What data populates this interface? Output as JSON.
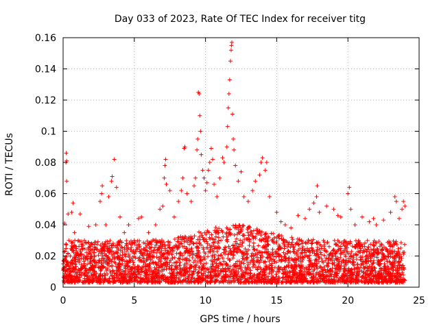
{
  "chart_data": {
    "type": "scatter",
    "title": "Day 033 of 2023, Rate Of TEC Index for receiver titg",
    "xlabel": "GPS time / hours",
    "ylabel": "ROTI / TECUs",
    "xlim": [
      0,
      25
    ],
    "ylim": [
      0,
      0.16
    ],
    "xticks": [
      0,
      5,
      10,
      15,
      20,
      25
    ],
    "xtick_labels": [
      "0",
      "5",
      "10",
      "15",
      "20",
      "25"
    ],
    "yticks": [
      0,
      0.02,
      0.04,
      0.06,
      0.08,
      0.1,
      0.12,
      0.14,
      0.16
    ],
    "ytick_labels": [
      "0",
      "0.02",
      "0.04",
      "0.06",
      "0.08",
      "0.1",
      "0.12",
      "0.14",
      "0.16"
    ],
    "grid": true,
    "marker": "+",
    "color": "#ff0000",
    "series": [
      {
        "name": "ROTI",
        "points": [
          [
            0.05,
            0.012
          ],
          [
            0.1,
            0.041
          ],
          [
            0.15,
            0.018
          ],
          [
            0.2,
            0.08
          ],
          [
            0.22,
            0.086
          ],
          [
            0.25,
            0.081
          ],
          [
            0.25,
            0.068
          ],
          [
            0.35,
            0.047
          ],
          [
            0.4,
            0.03
          ],
          [
            0.5,
            0.02
          ],
          [
            0.6,
            0.048
          ],
          [
            0.7,
            0.054
          ],
          [
            0.8,
            0.035
          ],
          [
            0.9,
            0.025
          ],
          [
            1.2,
            0.047
          ],
          [
            1.5,
            0.03
          ],
          [
            1.8,
            0.039
          ],
          [
            2.0,
            0.028
          ],
          [
            2.3,
            0.04
          ],
          [
            2.6,
            0.055
          ],
          [
            2.7,
            0.06
          ],
          [
            2.75,
            0.065
          ],
          [
            3.0,
            0.04
          ],
          [
            3.2,
            0.058
          ],
          [
            3.4,
            0.068
          ],
          [
            3.45,
            0.071
          ],
          [
            3.6,
            0.082
          ],
          [
            3.75,
            0.064
          ],
          [
            4.0,
            0.045
          ],
          [
            4.3,
            0.035
          ],
          [
            4.6,
            0.04
          ],
          [
            5.0,
            0.03
          ],
          [
            5.3,
            0.044
          ],
          [
            5.5,
            0.045
          ],
          [
            6.0,
            0.035
          ],
          [
            6.5,
            0.04
          ],
          [
            6.8,
            0.05
          ],
          [
            7.0,
            0.052
          ],
          [
            7.1,
            0.07
          ],
          [
            7.15,
            0.078
          ],
          [
            7.2,
            0.082
          ],
          [
            7.25,
            0.066
          ],
          [
            7.5,
            0.062
          ],
          [
            7.8,
            0.045
          ],
          [
            8.1,
            0.055
          ],
          [
            8.3,
            0.062
          ],
          [
            8.4,
            0.07
          ],
          [
            8.5,
            0.089
          ],
          [
            8.55,
            0.09
          ],
          [
            8.7,
            0.06
          ],
          [
            9.0,
            0.055
          ],
          [
            9.2,
            0.065
          ],
          [
            9.3,
            0.07
          ],
          [
            9.4,
            0.088
          ],
          [
            9.45,
            0.095
          ],
          [
            9.5,
            0.125
          ],
          [
            9.55,
            0.124
          ],
          [
            9.6,
            0.11
          ],
          [
            9.65,
            0.1
          ],
          [
            9.7,
            0.085
          ],
          [
            9.8,
            0.075
          ],
          [
            9.9,
            0.07
          ],
          [
            10.0,
            0.062
          ],
          [
            10.1,
            0.067
          ],
          [
            10.2,
            0.075
          ],
          [
            10.3,
            0.08
          ],
          [
            10.4,
            0.089
          ],
          [
            10.5,
            0.082
          ],
          [
            10.6,
            0.066
          ],
          [
            10.8,
            0.058
          ],
          [
            11.0,
            0.07
          ],
          [
            11.2,
            0.083
          ],
          [
            11.3,
            0.08
          ],
          [
            11.5,
            0.09
          ],
          [
            11.55,
            0.103
          ],
          [
            11.6,
            0.115
          ],
          [
            11.65,
            0.124
          ],
          [
            11.7,
            0.133
          ],
          [
            11.75,
            0.145
          ],
          [
            11.8,
            0.152
          ],
          [
            11.82,
            0.155
          ],
          [
            11.85,
            0.157
          ],
          [
            11.9,
            0.111
          ],
          [
            11.95,
            0.095
          ],
          [
            12.0,
            0.088
          ],
          [
            12.1,
            0.078
          ],
          [
            12.3,
            0.068
          ],
          [
            12.5,
            0.074
          ],
          [
            12.7,
            0.058
          ],
          [
            13.0,
            0.055
          ],
          [
            13.3,
            0.062
          ],
          [
            13.5,
            0.068
          ],
          [
            13.8,
            0.072
          ],
          [
            13.9,
            0.08
          ],
          [
            14.0,
            0.083
          ],
          [
            14.2,
            0.075
          ],
          [
            14.3,
            0.08
          ],
          [
            14.5,
            0.058
          ],
          [
            15.0,
            0.048
          ],
          [
            15.3,
            0.042
          ],
          [
            15.6,
            0.04
          ],
          [
            16.0,
            0.038
          ],
          [
            16.5,
            0.046
          ],
          [
            17.0,
            0.044
          ],
          [
            17.3,
            0.05
          ],
          [
            17.6,
            0.054
          ],
          [
            17.8,
            0.058
          ],
          [
            17.85,
            0.065
          ],
          [
            18.0,
            0.048
          ],
          [
            18.5,
            0.052
          ],
          [
            19.0,
            0.05
          ],
          [
            19.3,
            0.046
          ],
          [
            19.5,
            0.045
          ],
          [
            20.0,
            0.06
          ],
          [
            20.1,
            0.064
          ],
          [
            20.2,
            0.05
          ],
          [
            20.5,
            0.04
          ],
          [
            21.0,
            0.045
          ],
          [
            21.5,
            0.042
          ],
          [
            21.8,
            0.044
          ],
          [
            22.0,
            0.04
          ],
          [
            22.5,
            0.043
          ],
          [
            23.0,
            0.048
          ],
          [
            23.3,
            0.058
          ],
          [
            23.4,
            0.055
          ],
          [
            23.6,
            0.044
          ],
          [
            23.8,
            0.05
          ],
          [
            23.9,
            0.055
          ],
          [
            24.0,
            0.052
          ]
        ]
      }
    ],
    "baseline_band": {
      "low": 0.003,
      "high": 0.03,
      "x_range": [
        0,
        24
      ]
    }
  }
}
